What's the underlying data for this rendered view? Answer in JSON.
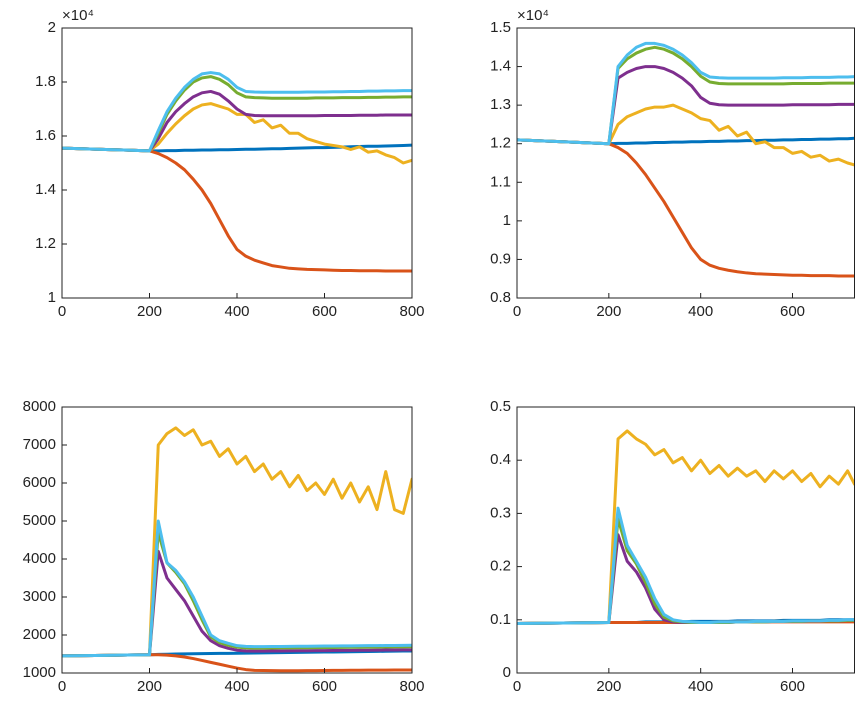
{
  "chart_data": [
    {
      "type": "line",
      "y_exponent_label": "×10⁴",
      "x": [
        0,
        100,
        200,
        220,
        240,
        260,
        280,
        300,
        320,
        340,
        360,
        380,
        400,
        420,
        440,
        460,
        480,
        500,
        520,
        540,
        560,
        580,
        600,
        620,
        640,
        660,
        680,
        700,
        720,
        740,
        760,
        780,
        800
      ],
      "xlim": [
        0,
        800
      ],
      "xticks": [
        0,
        200,
        400,
        600,
        800
      ],
      "ylim": [
        1,
        2
      ],
      "yticks": [
        1,
        1.2,
        1.4,
        1.6,
        1.8,
        2
      ],
      "series": [
        {
          "color": "#0072BD",
          "values": [
            1.555,
            1.55,
            1.545,
            1.545,
            1.546,
            1.546,
            1.547,
            1.547,
            1.548,
            1.548,
            1.549,
            1.549,
            1.55,
            1.551,
            1.551,
            1.552,
            1.553,
            1.553,
            1.554,
            1.555,
            1.556,
            1.557,
            1.557,
            1.558,
            1.559,
            1.56,
            1.561,
            1.562,
            1.562,
            1.563,
            1.564,
            1.565,
            1.566
          ]
        },
        {
          "color": "#D95319",
          "values": [
            1.555,
            1.55,
            1.545,
            1.535,
            1.52,
            1.5,
            1.475,
            1.44,
            1.4,
            1.35,
            1.29,
            1.23,
            1.18,
            1.155,
            1.14,
            1.13,
            1.12,
            1.115,
            1.11,
            1.108,
            1.106,
            1.105,
            1.104,
            1.103,
            1.102,
            1.102,
            1.101,
            1.101,
            1.101,
            1.1,
            1.1,
            1.1,
            1.1
          ]
        },
        {
          "color": "#EDB120",
          "values": [
            1.555,
            1.55,
            1.545,
            1.57,
            1.61,
            1.645,
            1.675,
            1.7,
            1.715,
            1.72,
            1.71,
            1.7,
            1.68,
            1.68,
            1.65,
            1.66,
            1.63,
            1.64,
            1.61,
            1.61,
            1.59,
            1.58,
            1.57,
            1.565,
            1.56,
            1.55,
            1.56,
            1.54,
            1.545,
            1.53,
            1.52,
            1.5,
            1.51
          ]
        },
        {
          "color": "#7E2F8E",
          "values": [
            1.555,
            1.55,
            1.545,
            1.59,
            1.65,
            1.69,
            1.72,
            1.745,
            1.76,
            1.765,
            1.755,
            1.73,
            1.7,
            1.68,
            1.676,
            1.675,
            1.675,
            1.675,
            1.675,
            1.675,
            1.675,
            1.675,
            1.676,
            1.676,
            1.676,
            1.676,
            1.677,
            1.677,
            1.677,
            1.678,
            1.678,
            1.678,
            1.678
          ]
        },
        {
          "color": "#77AC30",
          "values": [
            1.555,
            1.55,
            1.545,
            1.61,
            1.68,
            1.73,
            1.77,
            1.8,
            1.815,
            1.82,
            1.81,
            1.79,
            1.76,
            1.745,
            1.742,
            1.741,
            1.74,
            1.74,
            1.74,
            1.74,
            1.74,
            1.741,
            1.741,
            1.741,
            1.742,
            1.742,
            1.742,
            1.743,
            1.743,
            1.744,
            1.744,
            1.745,
            1.745
          ]
        },
        {
          "color": "#4DBEEE",
          "values": [
            1.555,
            1.55,
            1.545,
            1.62,
            1.69,
            1.74,
            1.78,
            1.81,
            1.83,
            1.835,
            1.83,
            1.81,
            1.78,
            1.765,
            1.763,
            1.762,
            1.762,
            1.762,
            1.762,
            1.762,
            1.763,
            1.763,
            1.763,
            1.764,
            1.764,
            1.765,
            1.765,
            1.766,
            1.766,
            1.767,
            1.767,
            1.768,
            1.768
          ]
        }
      ]
    },
    {
      "type": "line",
      "y_exponent_label": "×10⁴",
      "x": [
        0,
        100,
        200,
        220,
        240,
        260,
        280,
        300,
        320,
        340,
        360,
        380,
        400,
        420,
        440,
        460,
        480,
        500,
        520,
        540,
        560,
        580,
        600,
        620,
        640,
        660,
        680,
        700,
        720,
        735
      ],
      "xlim": [
        0,
        735
      ],
      "xticks": [
        0,
        200,
        400,
        600
      ],
      "ylim": [
        0.8,
        1.5
      ],
      "yticks": [
        0.8,
        0.9,
        1,
        1.1,
        1.2,
        1.3,
        1.4,
        1.5
      ],
      "series": [
        {
          "color": "#0072BD",
          "values": [
            1.21,
            1.205,
            1.2,
            1.201,
            1.201,
            1.202,
            1.202,
            1.203,
            1.203,
            1.204,
            1.204,
            1.205,
            1.205,
            1.206,
            1.206,
            1.207,
            1.207,
            1.208,
            1.208,
            1.209,
            1.209,
            1.21,
            1.21,
            1.211,
            1.211,
            1.212,
            1.212,
            1.213,
            1.213,
            1.214
          ]
        },
        {
          "color": "#D95319",
          "values": [
            1.21,
            1.205,
            1.2,
            1.19,
            1.175,
            1.15,
            1.12,
            1.085,
            1.05,
            1.01,
            0.97,
            0.93,
            0.9,
            0.885,
            0.877,
            0.872,
            0.868,
            0.865,
            0.863,
            0.862,
            0.861,
            0.86,
            0.859,
            0.859,
            0.858,
            0.858,
            0.858,
            0.857,
            0.857,
            0.857
          ]
        },
        {
          "color": "#EDB120",
          "values": [
            1.21,
            1.205,
            1.2,
            1.25,
            1.27,
            1.28,
            1.29,
            1.295,
            1.295,
            1.3,
            1.29,
            1.28,
            1.265,
            1.26,
            1.235,
            1.245,
            1.22,
            1.23,
            1.2,
            1.205,
            1.19,
            1.19,
            1.175,
            1.18,
            1.165,
            1.17,
            1.155,
            1.16,
            1.15,
            1.145
          ]
        },
        {
          "color": "#7E2F8E",
          "values": [
            1.21,
            1.205,
            1.2,
            1.37,
            1.385,
            1.395,
            1.4,
            1.4,
            1.395,
            1.385,
            1.37,
            1.35,
            1.32,
            1.305,
            1.301,
            1.3,
            1.3,
            1.3,
            1.3,
            1.3,
            1.3,
            1.3,
            1.301,
            1.301,
            1.301,
            1.301,
            1.301,
            1.302,
            1.302,
            1.302
          ]
        },
        {
          "color": "#77AC30",
          "values": [
            1.21,
            1.205,
            1.2,
            1.395,
            1.42,
            1.435,
            1.445,
            1.45,
            1.445,
            1.435,
            1.42,
            1.4,
            1.375,
            1.36,
            1.356,
            1.355,
            1.355,
            1.355,
            1.355,
            1.355,
            1.355,
            1.355,
            1.356,
            1.356,
            1.356,
            1.356,
            1.357,
            1.357,
            1.357,
            1.357
          ]
        },
        {
          "color": "#4DBEEE",
          "values": [
            1.21,
            1.205,
            1.2,
            1.4,
            1.43,
            1.45,
            1.46,
            1.46,
            1.455,
            1.445,
            1.43,
            1.41,
            1.385,
            1.373,
            1.371,
            1.37,
            1.37,
            1.37,
            1.37,
            1.37,
            1.37,
            1.371,
            1.371,
            1.371,
            1.372,
            1.372,
            1.372,
            1.373,
            1.373,
            1.374
          ]
        }
      ]
    },
    {
      "type": "line",
      "x": [
        0,
        100,
        200,
        220,
        240,
        260,
        280,
        300,
        320,
        340,
        360,
        380,
        400,
        420,
        440,
        460,
        480,
        500,
        520,
        540,
        560,
        580,
        600,
        620,
        640,
        660,
        680,
        700,
        720,
        740,
        760,
        780,
        800
      ],
      "xlim": [
        0,
        800
      ],
      "xticks": [
        0,
        200,
        400,
        600,
        800
      ],
      "ylim": [
        1000,
        8000
      ],
      "yticks": [
        1000,
        2000,
        3000,
        4000,
        5000,
        6000,
        7000,
        8000
      ],
      "series": [
        {
          "color": "#0072BD",
          "values": [
            1450,
            1465,
            1480,
            1490,
            1495,
            1500,
            1503,
            1506,
            1509,
            1512,
            1515,
            1518,
            1521,
            1524,
            1527,
            1530,
            1533,
            1536,
            1539,
            1542,
            1545,
            1548,
            1551,
            1554,
            1557,
            1560,
            1563,
            1566,
            1569,
            1572,
            1575,
            1578,
            1580
          ]
        },
        {
          "color": "#D95319",
          "values": [
            1450,
            1465,
            1480,
            1480,
            1470,
            1450,
            1420,
            1380,
            1330,
            1280,
            1230,
            1180,
            1130,
            1090,
            1070,
            1065,
            1062,
            1060,
            1060,
            1060,
            1062,
            1064,
            1066,
            1068,
            1070,
            1072,
            1074,
            1075,
            1076,
            1077,
            1078,
            1079,
            1080
          ]
        },
        {
          "color": "#EDB120",
          "values": [
            1450,
            1465,
            1480,
            7000,
            7300,
            7450,
            7250,
            7400,
            7000,
            7100,
            6700,
            6900,
            6500,
            6700,
            6300,
            6500,
            6100,
            6300,
            5900,
            6200,
            5800,
            6000,
            5700,
            6100,
            5600,
            6000,
            5500,
            5900,
            5300,
            6300,
            5300,
            5200,
            6100
          ]
        },
        {
          "color": "#7E2F8E",
          "values": [
            1450,
            1465,
            1480,
            4200,
            3500,
            3200,
            2900,
            2500,
            2100,
            1850,
            1720,
            1650,
            1600,
            1580,
            1575,
            1575,
            1578,
            1580,
            1582,
            1584,
            1586,
            1588,
            1590,
            1592,
            1594,
            1596,
            1598,
            1600,
            1602,
            1604,
            1606,
            1608,
            1610
          ]
        },
        {
          "color": "#77AC30",
          "values": [
            1450,
            1465,
            1480,
            4700,
            3900,
            3650,
            3350,
            2900,
            2400,
            1950,
            1800,
            1730,
            1680,
            1660,
            1655,
            1655,
            1658,
            1660,
            1662,
            1664,
            1666,
            1668,
            1670,
            1672,
            1674,
            1676,
            1678,
            1680,
            1682,
            1684,
            1686,
            1688,
            1690
          ]
        },
        {
          "color": "#4DBEEE",
          "values": [
            1450,
            1465,
            1480,
            5000,
            3900,
            3700,
            3400,
            3000,
            2500,
            2000,
            1850,
            1780,
            1720,
            1700,
            1695,
            1695,
            1697,
            1699,
            1701,
            1703,
            1705,
            1707,
            1709,
            1711,
            1713,
            1715,
            1717,
            1719,
            1721,
            1723,
            1725,
            1727,
            1730
          ]
        }
      ]
    },
    {
      "type": "line",
      "x": [
        0,
        100,
        200,
        220,
        240,
        260,
        280,
        300,
        320,
        340,
        360,
        380,
        400,
        420,
        440,
        460,
        480,
        500,
        520,
        540,
        560,
        580,
        600,
        620,
        640,
        660,
        680,
        700,
        720,
        735
      ],
      "xlim": [
        0,
        735
      ],
      "xticks": [
        0,
        200,
        400,
        600
      ],
      "ylim": [
        0,
        0.5
      ],
      "yticks": [
        0,
        0.1,
        0.2,
        0.3,
        0.4,
        0.5
      ],
      "series": [
        {
          "color": "#0072BD",
          "values": [
            0.093,
            0.094,
            0.095,
            0.095,
            0.095,
            0.095,
            0.096,
            0.096,
            0.096,
            0.096,
            0.096,
            0.097,
            0.097,
            0.097,
            0.097,
            0.097,
            0.098,
            0.098,
            0.098,
            0.098,
            0.098,
            0.099,
            0.099,
            0.099,
            0.099,
            0.099,
            0.1,
            0.1,
            0.1,
            0.1
          ]
        },
        {
          "color": "#D95319",
          "values": [
            0.093,
            0.094,
            0.095,
            0.095,
            0.095,
            0.095,
            0.095,
            0.095,
            0.095,
            0.095,
            0.095,
            0.095,
            0.095,
            0.095,
            0.096,
            0.096,
            0.096,
            0.096,
            0.096,
            0.096,
            0.096,
            0.096,
            0.096,
            0.096,
            0.096,
            0.096,
            0.096,
            0.096,
            0.096,
            0.096
          ]
        },
        {
          "color": "#EDB120",
          "values": [
            0.093,
            0.094,
            0.095,
            0.44,
            0.455,
            0.44,
            0.43,
            0.41,
            0.42,
            0.395,
            0.405,
            0.38,
            0.4,
            0.375,
            0.39,
            0.37,
            0.385,
            0.37,
            0.38,
            0.36,
            0.38,
            0.365,
            0.38,
            0.36,
            0.375,
            0.35,
            0.37,
            0.355,
            0.38,
            0.355
          ]
        },
        {
          "color": "#7E2F8E",
          "values": [
            0.093,
            0.094,
            0.095,
            0.26,
            0.21,
            0.19,
            0.16,
            0.12,
            0.1,
            0.096,
            0.095,
            0.095,
            0.095,
            0.095,
            0.095,
            0.095,
            0.096,
            0.096,
            0.096,
            0.096,
            0.097,
            0.097,
            0.097,
            0.097,
            0.098,
            0.098,
            0.098,
            0.098,
            0.099,
            0.099
          ]
        },
        {
          "color": "#77AC30",
          "values": [
            0.093,
            0.094,
            0.095,
            0.29,
            0.23,
            0.205,
            0.17,
            0.13,
            0.105,
            0.098,
            0.096,
            0.095,
            0.095,
            0.095,
            0.095,
            0.095,
            0.096,
            0.096,
            0.096,
            0.096,
            0.097,
            0.097,
            0.097,
            0.097,
            0.098,
            0.098,
            0.098,
            0.098,
            0.099,
            0.099
          ]
        },
        {
          "color": "#4DBEEE",
          "values": [
            0.093,
            0.094,
            0.095,
            0.31,
            0.24,
            0.21,
            0.18,
            0.14,
            0.11,
            0.1,
            0.097,
            0.096,
            0.095,
            0.095,
            0.096,
            0.096,
            0.096,
            0.096,
            0.097,
            0.097,
            0.097,
            0.097,
            0.098,
            0.098,
            0.098,
            0.098,
            0.099,
            0.099,
            0.1,
            0.1
          ]
        }
      ]
    }
  ]
}
